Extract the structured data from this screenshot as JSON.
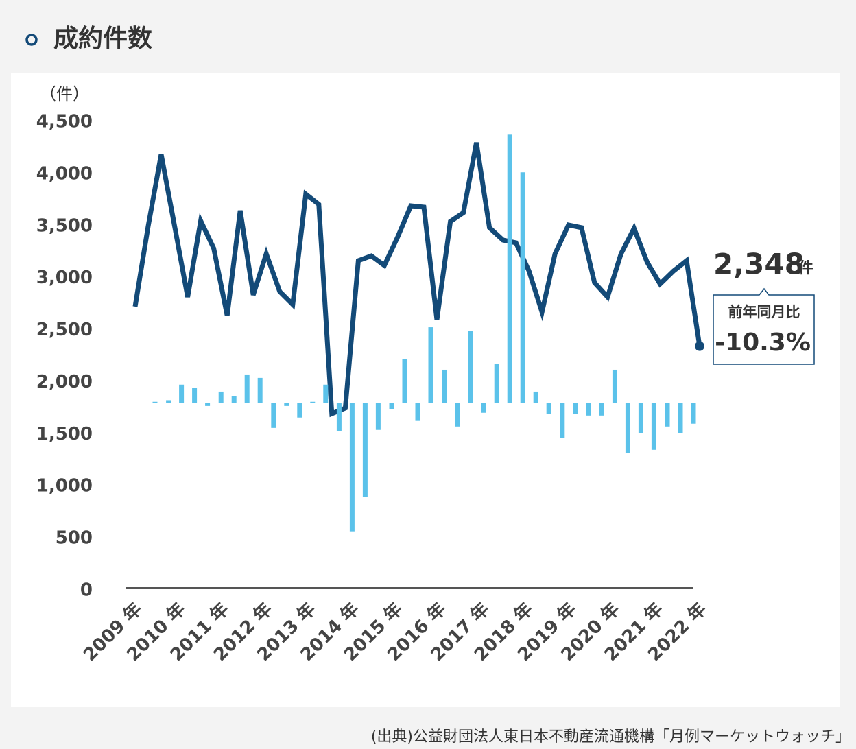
{
  "chart_data": {
    "type": "line",
    "title": "成約件数",
    "y_label": "（件）",
    "unit": "件",
    "source": "(出典)公益財団法人東日本不動産流通機構「月例マーケットウォッチ」",
    "x": [
      2009,
      2009.3,
      2009.6,
      2009.91,
      2010.21,
      2010.51,
      2010.81,
      2011.12,
      2011.42,
      2011.72,
      2012.02,
      2012.33,
      2012.63,
      2012.93,
      2013.23,
      2013.53,
      2013.84,
      2014.14,
      2014.44,
      2014.74,
      2015.05,
      2015.35,
      2015.65,
      2015.95,
      2016.26,
      2016.56,
      2016.86,
      2017.16,
      2017.47,
      2017.77,
      2018.07,
      2018.37,
      2018.67,
      2018.98,
      2019.28,
      2019.58,
      2019.88,
      2020.19,
      2020.49,
      2020.79,
      2021.09,
      2021.4,
      2021.7,
      2022
    ],
    "xlim": [
      2009,
      2022
    ],
    "xticks": [
      {
        "value": 2009,
        "label": "2009 年"
      },
      {
        "value": 2010,
        "label": "2010 年"
      },
      {
        "value": 2011,
        "label": "2011 年"
      },
      {
        "value": 2012,
        "label": "2012 年"
      },
      {
        "value": 2013,
        "label": "2013 年"
      },
      {
        "value": 2014,
        "label": "2014 年"
      },
      {
        "value": 2015,
        "label": "2015 年"
      },
      {
        "value": 2016,
        "label": "2016 年"
      },
      {
        "value": 2017,
        "label": "2017 年"
      },
      {
        "value": 2018,
        "label": "2018 年"
      },
      {
        "value": 2019,
        "label": "2019 年"
      },
      {
        "value": 2020,
        "label": "2020 年"
      },
      {
        "value": 2021,
        "label": "2021 年"
      },
      {
        "value": 2022,
        "label": "2022 年"
      }
    ],
    "ylim": [
      0,
      4500
    ],
    "yticks": [
      0,
      500,
      {
        "value": 1000,
        "label": "1,000"
      },
      {
        "value": 1500,
        "label": "1,500"
      },
      {
        "value": 2000,
        "label": "2,000"
      },
      {
        "value": 2500,
        "label": "2,500"
      },
      {
        "value": 3000,
        "label": "3,000"
      },
      {
        "value": 3500,
        "label": "3,500"
      },
      {
        "value": 4000,
        "label": "4,000"
      },
      {
        "value": 4500,
        "label": "4,500"
      }
    ],
    "y2lim": [
      -94,
      141
    ],
    "series": [
      {
        "type": "line",
        "color": "#134a78",
        "values": [
          2728,
          3499,
          4190,
          3499,
          2820,
          3552,
          3288,
          2642,
          3650,
          2840,
          3235,
          2873,
          2748,
          3808,
          3710,
          1699,
          1753,
          3169,
          3215,
          3123,
          3400,
          3696,
          3683,
          2603,
          3545,
          3630,
          4303,
          3486,
          3367,
          3341,
          3070,
          2675,
          3235,
          3512,
          3486,
          2958,
          2820,
          3235,
          3479,
          3156,
          2945,
          3070,
          3169,
          2348
        ],
        "value_labels": [
          null,
          null,
          null,
          null,
          null,
          null,
          null,
          null,
          null,
          null,
          null,
          null,
          null,
          null,
          null,
          null,
          null,
          null,
          null,
          null,
          null,
          null,
          null,
          null,
          null,
          null,
          null,
          null,
          null,
          null,
          null,
          null,
          null,
          null,
          null,
          null,
          null,
          null,
          null,
          null,
          null,
          null,
          null,
          "2,348"
        ]
      },
      {
        "type": "bar",
        "name": "前年同月比",
        "axis": "y2",
        "color": "#5bc2ea",
        "values": [
          null,
          null,
          0.7,
          1.5,
          9.3,
          7.6,
          -1.4,
          5.8,
          3.4,
          14.4,
          12.7,
          -12.4,
          -1.4,
          -7.2,
          0.7,
          9.3,
          -14.1,
          -64.3,
          -47.1,
          -13.4,
          -3.1,
          22.0,
          -8.9,
          38.1,
          16.8,
          -11.7,
          36.4,
          -4.8,
          19.6,
          134.7,
          115.8,
          5.8,
          -5.5,
          -17.5,
          -5.5,
          -6.2,
          -6.2,
          16.8,
          -25.1,
          -15.1,
          -23.4,
          -11.7,
          -15.1,
          -10.3
        ],
        "value_labels": [
          null,
          null,
          null,
          null,
          null,
          null,
          null,
          null,
          null,
          null,
          null,
          null,
          null,
          null,
          null,
          null,
          null,
          null,
          null,
          null,
          null,
          null,
          null,
          null,
          null,
          null,
          null,
          null,
          null,
          null,
          null,
          null,
          null,
          null,
          null,
          null,
          null,
          null,
          null,
          null,
          null,
          null,
          null,
          "-10.3%"
        ]
      }
    ]
  }
}
